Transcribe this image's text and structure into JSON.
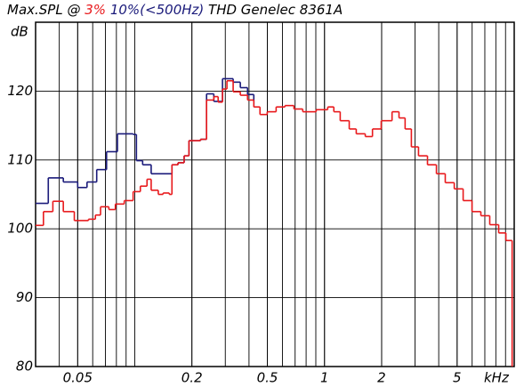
{
  "chart_data": {
    "type": "step",
    "title": "Max.SPL @",
    "title_suffix": "THD Genelec 8361A",
    "y_label": "dB",
    "x_label": "kHz",
    "log_x": true,
    "grid": true,
    "minor_grid": true,
    "xlim": [
      0.03,
      10
    ],
    "xticks": [
      0.05,
      0.2,
      0.5,
      1,
      2,
      5
    ],
    "ylim": [
      80,
      130
    ],
    "yticks": [
      80,
      90,
      100,
      110,
      120
    ],
    "series": [
      {
        "name": "10%(<500Hz)",
        "color": "#1a1a7a",
        "x": [
          0.03,
          0.035,
          0.042,
          0.05,
          0.056,
          0.063,
          0.071,
          0.081,
          0.098,
          0.102,
          0.11,
          0.122,
          0.157,
          0.169,
          0.182,
          0.193,
          0.222,
          0.239,
          0.261,
          0.29,
          0.33,
          0.36,
          0.393,
          0.424
        ],
        "values": [
          103.7,
          107.4,
          106.8,
          106,
          106.8,
          108.6,
          111.2,
          113.8,
          113.7,
          109.9,
          109.3,
          108,
          109.3,
          109.6,
          110.6,
          112.8,
          113,
          119.6,
          118.5,
          121.8,
          121.3,
          120.5,
          119.5,
          117.7
        ]
      },
      {
        "name": "3%",
        "color": "#e8191c",
        "x": [
          0.03,
          0.033,
          0.037,
          0.042,
          0.048,
          0.057,
          0.062,
          0.066,
          0.073,
          0.079,
          0.088,
          0.098,
          0.107,
          0.116,
          0.122,
          0.133,
          0.141,
          0.152,
          0.157,
          0.169,
          0.182,
          0.193,
          0.222,
          0.239,
          0.261,
          0.275,
          0.29,
          0.306,
          0.33,
          0.36,
          0.393,
          0.424,
          0.457,
          0.499,
          0.556,
          0.619,
          0.69,
          0.768,
          0.904,
          1.04,
          1.12,
          1.21,
          1.35,
          1.47,
          1.64,
          1.79,
          1.99,
          2.27,
          2.47,
          2.66,
          2.87,
          3.13,
          3.49,
          3.89,
          4.33,
          4.83,
          5.38,
          5.99,
          6.67,
          7.43,
          8.28,
          9.04,
          9.75
        ],
        "values": [
          100.5,
          102.5,
          104,
          102.5,
          101.2,
          101.4,
          102,
          103.2,
          102.8,
          103.6,
          104.1,
          105.4,
          106.2,
          107.2,
          105.6,
          105,
          105.2,
          105,
          109.3,
          109.6,
          110.6,
          112.8,
          113,
          118.7,
          119.2,
          118.4,
          120.3,
          121.5,
          119.9,
          119.4,
          118.7,
          117.7,
          116.6,
          117,
          117.7,
          117.9,
          117.4,
          117,
          117.3,
          117.7,
          117,
          115.7,
          114.5,
          113.8,
          113.4,
          114.5,
          115.7,
          117,
          116.1,
          114.5,
          111.9,
          110.6,
          109.3,
          108,
          106.7,
          105.8,
          104.1,
          102.5,
          101.9,
          100.6,
          99.4,
          98.3,
          80
        ]
      }
    ]
  }
}
